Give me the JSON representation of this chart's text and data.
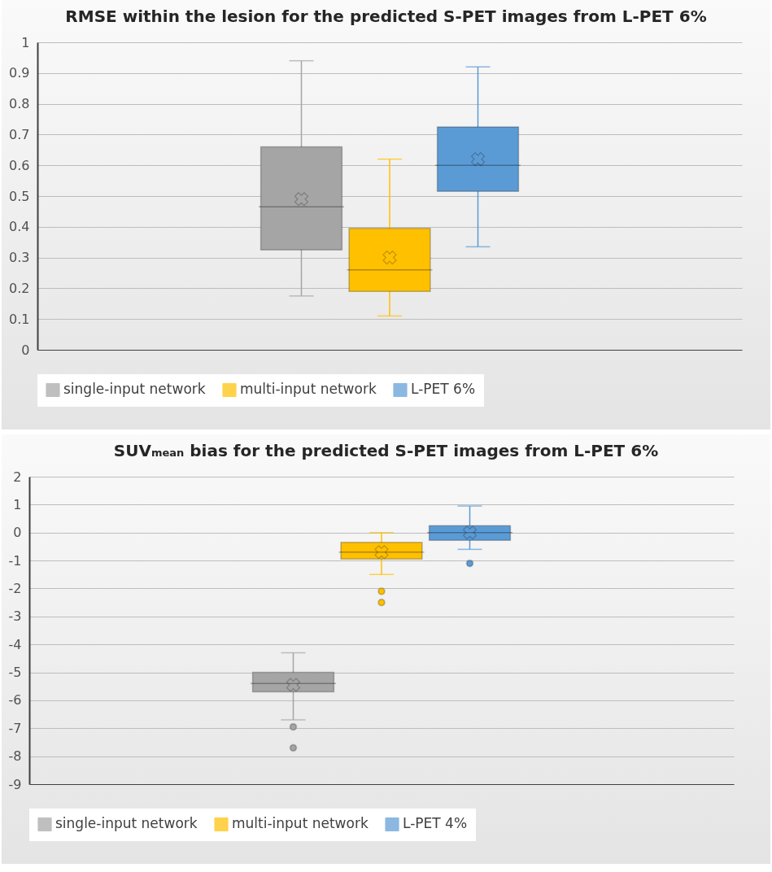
{
  "chart_data": [
    {
      "type": "box",
      "title": "RMSE within the lesion for the predicted S-PET images from L-PET 6%",
      "categories": [
        null
      ],
      "ylim": [
        0,
        1
      ],
      "yticks": [
        0,
        0.1,
        0.2,
        0.3,
        0.4,
        0.5,
        0.6,
        0.7,
        0.8,
        0.9,
        1
      ],
      "grid": "y",
      "legend": "bottom",
      "tick_labels": "y",
      "series": [
        {
          "name": "single-input network",
          "color": "#a5a5a5",
          "boxes": [
            {
              "low": 0.175,
              "q1": 0.325,
              "median": 0.465,
              "q3": 0.66,
              "high": 0.94,
              "mean": 0.49
            }
          ]
        },
        {
          "name": "multi-input network",
          "color": "#ffc000",
          "boxes": [
            {
              "low": 0.11,
              "q1": 0.19,
              "median": 0.26,
              "q3": 0.395,
              "high": 0.62,
              "mean": 0.3
            }
          ]
        },
        {
          "name": "L-PET 6%",
          "color": "#5b9bd5",
          "boxes": [
            {
              "low": 0.335,
              "q1": 0.515,
              "median": 0.6,
              "q3": 0.725,
              "high": 0.92,
              "mean": 0.62
            }
          ]
        }
      ]
    },
    {
      "type": "box",
      "title": "SUV$_{mean}$ bias for the predicted S-PET images from L-PET 6%",
      "categories": [
        null
      ],
      "ylim": [
        -9,
        2
      ],
      "yticks": [
        -9,
        -8,
        -7,
        -6,
        -5,
        -4,
        -3,
        -2,
        -1,
        0,
        1,
        2
      ],
      "grid": "y",
      "legend": "bottom",
      "tick_labels": "y",
      "series": [
        {
          "name": "single-input network",
          "color": "#a5a5a5",
          "boxes": [
            {
              "low": -6.7,
              "q1": -5.7,
              "median": -5.4,
              "q3": -5.0,
              "high": -4.3,
              "mean": -5.45,
              "outliers": [
                -6.95,
                -7.7
              ]
            }
          ]
        },
        {
          "name": "multi-input network",
          "color": "#ffc000",
          "boxes": [
            {
              "low": -1.5,
              "q1": -0.95,
              "median": -0.7,
              "q3": -0.35,
              "high": 0,
              "mean": -0.7,
              "outliers": [
                -2.1,
                -2.5
              ]
            }
          ]
        },
        {
          "name": "L-PET 4%",
          "color": "#5b9bd5",
          "boxes": [
            {
              "low": -0.6,
              "q1": -0.28,
              "median": 0,
              "q3": 0.25,
              "high": 0.95,
              "mean": 0,
              "outliers": [
                -1.1
              ]
            }
          ]
        }
      ]
    }
  ]
}
